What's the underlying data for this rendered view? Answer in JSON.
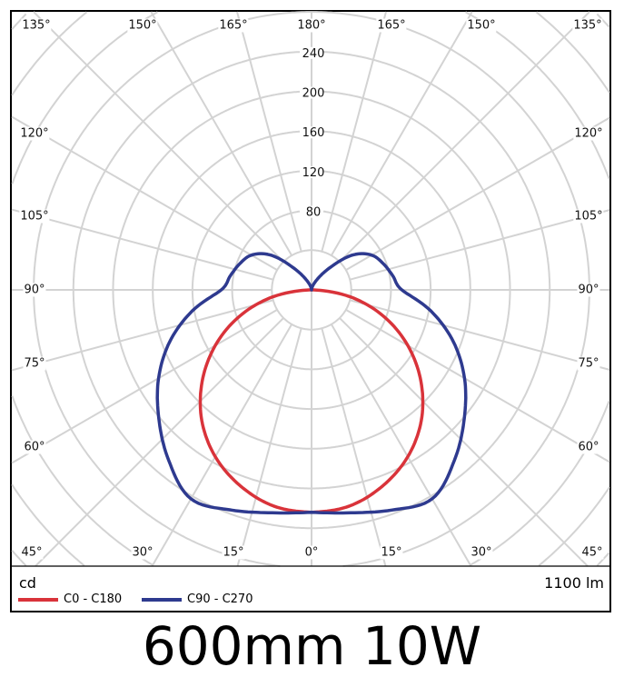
{
  "chart_data": {
    "type": "polar-line",
    "title": "600mm 10W",
    "unit_label": "cd",
    "flux_label": "1100 lm",
    "radial_ticks": [
      80,
      120,
      160,
      200,
      240
    ],
    "radial_step": 40,
    "angle_step_deg": 15,
    "angle_labels": {
      "top": [
        "135°",
        "150°",
        "165°",
        "180°",
        "165°",
        "150°",
        "135°"
      ],
      "left": [
        "120°",
        "105°",
        "90°",
        "75°",
        "60°"
      ],
      "right": [
        "120°",
        "105°",
        "90°",
        "75°",
        "60°"
      ],
      "bottom": [
        "45°",
        "30°",
        "15°",
        "0°",
        "15°",
        "30°",
        "45°"
      ]
    },
    "grid": true,
    "legend_placement": "bottom-left",
    "colors": {
      "grid": "#d3d3d3",
      "c0": "#d9333a",
      "c90": "#2e3a8f"
    },
    "series": [
      {
        "name": "C0 - C180",
        "angles": [
          0,
          10,
          20,
          30,
          40,
          50,
          60,
          70,
          80,
          90
        ],
        "values": [
          224,
          221,
          210,
          194,
          172,
          144,
          112,
          77,
          39,
          0
        ]
      },
      {
        "name": "C90 - C270",
        "angles": [
          0,
          10,
          20,
          30,
          40,
          50,
          60,
          70,
          80,
          90,
          100,
          110,
          120,
          130,
          140,
          150,
          160,
          170,
          180
        ],
        "values": [
          224,
          228,
          236,
          243,
          224,
          201,
          178,
          152,
          122,
          91,
          83,
          77,
          70,
          55,
          30,
          14,
          6,
          2,
          0
        ]
      }
    ]
  }
}
